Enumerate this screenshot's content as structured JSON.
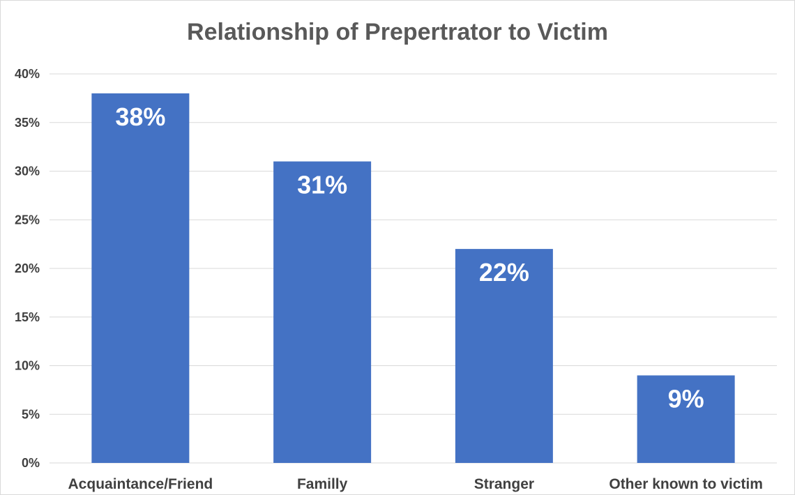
{
  "chart_data": {
    "type": "bar",
    "title": "Relationship of Prepertrator to Victim",
    "xlabel": "",
    "ylabel": "",
    "categories": [
      "Acquaintance/Friend",
      "Familly",
      "Stranger",
      "Other known to victim"
    ],
    "values": [
      38,
      31,
      22,
      9
    ],
    "data_labels": [
      "38%",
      "31%",
      "22%",
      "9%"
    ],
    "ylim": [
      0,
      40
    ],
    "y_ticks": [
      0,
      5,
      10,
      15,
      20,
      25,
      30,
      35,
      40
    ],
    "y_tick_labels": [
      "0%",
      "5%",
      "10%",
      "15%",
      "20%",
      "25%",
      "30%",
      "35%",
      "40%"
    ],
    "grid": true,
    "legend": "none",
    "bar_color": "#4472C4"
  }
}
